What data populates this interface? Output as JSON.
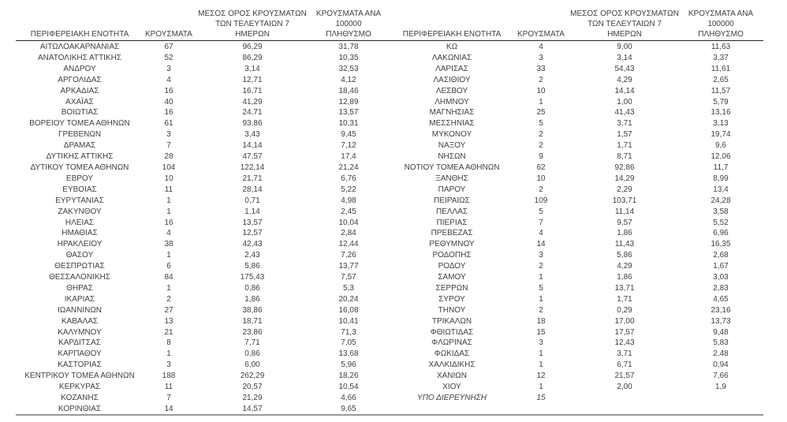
{
  "page": {
    "background_color": "#ffffff",
    "text_color": "#3f3f3f",
    "header_rule_color": "#262626",
    "bottom_rule_color": "#9a9a9a"
  },
  "columns": {
    "region": "ΠΕΡΙΦΕΡΕΙΑΚΗ ΕΝΟΤΗΤΑ",
    "cases": "ΚΡΟΥΣΜΑΤΑ",
    "avg7_lines": [
      "ΜΕΣΟΣ ΟΡΟΣ ΚΡΟΥΣΜΑΤΩΝ",
      "ΤΩΝ ΤΕΛΕΥΤΑΙΩΝ 7",
      "ΗΜΕΡΩΝ"
    ],
    "per100k_lines": [
      "ΚΡΟΥΣΜΑΤΑ ΑΝΑ 100000",
      "ΠΛΗΘΥΣΜΟ"
    ]
  },
  "left_table": {
    "rows": [
      [
        "ΑΙΤΩΛΟΑΚΑΡΝΑΝΙΑΣ",
        "67",
        "96,29",
        "31,78"
      ],
      [
        "ΑΝΑΤΟΛΙΚΗΣ ΑΤΤΙΚΗΣ",
        "52",
        "86,29",
        "10,35"
      ],
      [
        "ΑΝΔΡΟΥ",
        "3",
        "3,14",
        "32,53"
      ],
      [
        "ΑΡΓΟΛΙΔΑΣ",
        "4",
        "12,71",
        "4,12"
      ],
      [
        "ΑΡΚΑΔΙΑΣ",
        "16",
        "16,71",
        "18,46"
      ],
      [
        "ΑΧΑΪΑΣ",
        "40",
        "41,29",
        "12,89"
      ],
      [
        "ΒΟΙΩΤΙΑΣ",
        "16",
        "24,71",
        "13,57"
      ],
      [
        "ΒΟΡΕΙΟΥ ΤΟΜΕΑ ΑΘΗΝΩΝ",
        "61",
        "93,86",
        "10,31"
      ],
      [
        "ΓΡΕΒΕΝΩΝ",
        "3",
        "3,43",
        "9,45"
      ],
      [
        "ΔΡΑΜΑΣ",
        "7",
        "14,14",
        "7,12"
      ],
      [
        "ΔΥΤΙΚΗΣ ΑΤΤΙΚΗΣ",
        "28",
        "47,57",
        "17,4"
      ],
      [
        "ΔΥΤΙΚΟΥ ΤΟΜΕΑ ΑΘΗΝΩΝ",
        "104",
        "122,14",
        "21,24"
      ],
      [
        "ΕΒΡΟΥ",
        "10",
        "21,71",
        "6,76"
      ],
      [
        "ΕΥΒΟΙΑΣ",
        "11",
        "28,14",
        "5,22"
      ],
      [
        "ΕΥΡΥΤΑΝΙΑΣ",
        "1",
        "0,71",
        "4,98"
      ],
      [
        "ΖΑΚΥΝΘΟΥ",
        "1",
        "1,14",
        "2,45"
      ],
      [
        "ΗΛΕΙΑΣ",
        "16",
        "13,57",
        "10,04"
      ],
      [
        "ΗΜΑΘΙΑΣ",
        "4",
        "12,57",
        "2,84"
      ],
      [
        "ΗΡΑΚΛΕΙΟΥ",
        "38",
        "42,43",
        "12,44"
      ],
      [
        "ΘΑΣΟΥ",
        "1",
        "2,43",
        "7,26"
      ],
      [
        "ΘΕΣΠΡΩΤΙΑΣ",
        "6",
        "5,86",
        "13,77"
      ],
      [
        "ΘΕΣΣΑΛΟΝΙΚΗΣ",
        "84",
        "175,43",
        "7,57"
      ],
      [
        "ΘΗΡΑΣ",
        "1",
        "0,86",
        "5,3"
      ],
      [
        "ΙΚΑΡΙΑΣ",
        "2",
        "1,86",
        "20,24"
      ],
      [
        "ΙΩΑΝΝΙΝΩΝ",
        "27",
        "38,86",
        "16,08"
      ],
      [
        "ΚΑΒΑΛΑΣ",
        "13",
        "18,71",
        "10,41"
      ],
      [
        "ΚΑΛΥΜΝΟΥ",
        "21",
        "23,86",
        "71,3"
      ],
      [
        "ΚΑΡΔΙΤΣΑΣ",
        "8",
        "7,71",
        "7,05"
      ],
      [
        "ΚΑΡΠΑΘΟΥ",
        "1",
        "0,86",
        "13,68"
      ],
      [
        "ΚΑΣΤΟΡΙΑΣ",
        "3",
        "6,00",
        "5,96"
      ],
      [
        "ΚΕΝΤΡΙΚΟΥ ΤΟΜΕΑ ΑΘΗΝΩΝ",
        "188",
        "262,29",
        "18,26"
      ],
      [
        "ΚΕΡΚΥΡΑΣ",
        "11",
        "20,57",
        "10,54"
      ],
      [
        "ΚΟΖΑΝΗΣ",
        "7",
        "21,29",
        "4,66"
      ],
      [
        "ΚΟΡΙΝΘΙΑΣ",
        "14",
        "14,57",
        "9,65"
      ]
    ]
  },
  "right_table": {
    "rows": [
      [
        "ΚΩ",
        "4",
        "9,00",
        "11,63"
      ],
      [
        "ΛΑΚΩΝΙΑΣ",
        "3",
        "3,14",
        "3,37"
      ],
      [
        "ΛΑΡΙΣΑΣ",
        "33",
        "54,43",
        "11,61"
      ],
      [
        "ΛΑΣΙΘΙΟΥ",
        "2",
        "4,29",
        "2,65"
      ],
      [
        "ΛΕΣΒΟΥ",
        "10",
        "14,14",
        "11,57"
      ],
      [
        "ΛΗΜΝΟΥ",
        "1",
        "1,00",
        "5,79"
      ],
      [
        "ΜΑΓΝΗΣΙΑΣ",
        "25",
        "41,43",
        "13,16"
      ],
      [
        "ΜΕΣΣΗΝΙΑΣ",
        "5",
        "3,71",
        "3,13"
      ],
      [
        "ΜΥΚΟΝΟΥ",
        "2",
        "1,57",
        "19,74"
      ],
      [
        "ΝΑΞΟΥ",
        "2",
        "1,71",
        "9,6"
      ],
      [
        "ΝΗΣΩΝ",
        "9",
        "8,71",
        "12,06"
      ],
      [
        "ΝΟΤΙΟΥ ΤΟΜΕΑ ΑΘΗΝΩΝ",
        "62",
        "92,86",
        "11,7"
      ],
      [
        "ΞΑΝΘΗΣ",
        "10",
        "14,29",
        "8,99"
      ],
      [
        "ΠΑΡΟΥ",
        "2",
        "2,29",
        "13,4"
      ],
      [
        "ΠΕΙΡΑΙΩΣ",
        "109",
        "103,71",
        "24,28"
      ],
      [
        "ΠΕΛΛΑΣ",
        "5",
        "11,14",
        "3,58"
      ],
      [
        "ΠΙΕΡΙΑΣ",
        "7",
        "9,57",
        "5,52"
      ],
      [
        "ΠΡΕΒΕΖΑΣ",
        "4",
        "1,86",
        "6,96"
      ],
      [
        "ΡΕΘΥΜΝΟΥ",
        "14",
        "11,43",
        "16,35"
      ],
      [
        "ΡΟΔΟΠΗΣ",
        "3",
        "5,86",
        "2,68"
      ],
      [
        "ΡΟΔΟΥ",
        "2",
        "4,29",
        "1,67"
      ],
      [
        "ΣΑΜΟΥ",
        "1",
        "1,86",
        "3,03"
      ],
      [
        "ΣΕΡΡΩΝ",
        "5",
        "13,71",
        "2,83"
      ],
      [
        "ΣΥΡΟΥ",
        "1",
        "1,71",
        "4,65"
      ],
      [
        "ΤΗΝΟΥ",
        "2",
        "0,29",
        "23,16"
      ],
      [
        "ΤΡΙΚΑΛΩΝ",
        "18",
        "17,00",
        "13,73"
      ],
      [
        "ΦΘΙΩΤΙΔΑΣ",
        "15",
        "17,57",
        "9,48"
      ],
      [
        "ΦΛΩΡΙΝΑΣ",
        "3",
        "12,43",
        "5,83"
      ],
      [
        "ΦΩΚΙΔΑΣ",
        "1",
        "3,71",
        "2,48"
      ],
      [
        "ΧΑΛΚΙΔΙΚΗΣ",
        "1",
        "6,71",
        "0,94"
      ],
      [
        "ΧΑΝΙΩΝ",
        "12",
        "21,57",
        "7,66"
      ],
      [
        "ΧΙΟΥ",
        "1",
        "2,00",
        "1,9"
      ],
      [
        "ΥΠΟ ΔΙΕΡΕΥΝΗΣΗ",
        "15",
        "",
        "",
        true
      ]
    ]
  }
}
